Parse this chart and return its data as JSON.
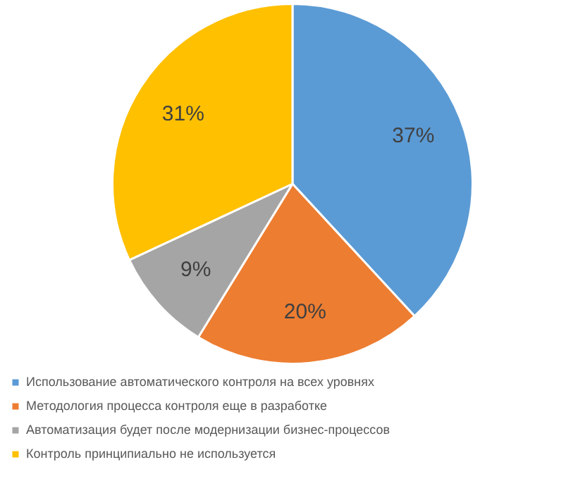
{
  "chart_data": {
    "type": "pie",
    "categories": [
      "Использование автоматического контроля на всех уровнях",
      "Методология процесса контроля еще в разработке",
      "Автоматизация будет после модернизации бизнес-процессов",
      "Контроль принципиально не используется"
    ],
    "values": [
      37,
      20,
      9,
      31
    ],
    "colors": [
      "#5b9bd5",
      "#ed7d31",
      "#a5a5a5",
      "#ffc000"
    ],
    "value_labels": [
      "37%",
      "20%",
      "9%",
      "31%"
    ],
    "legend": "bottom"
  }
}
